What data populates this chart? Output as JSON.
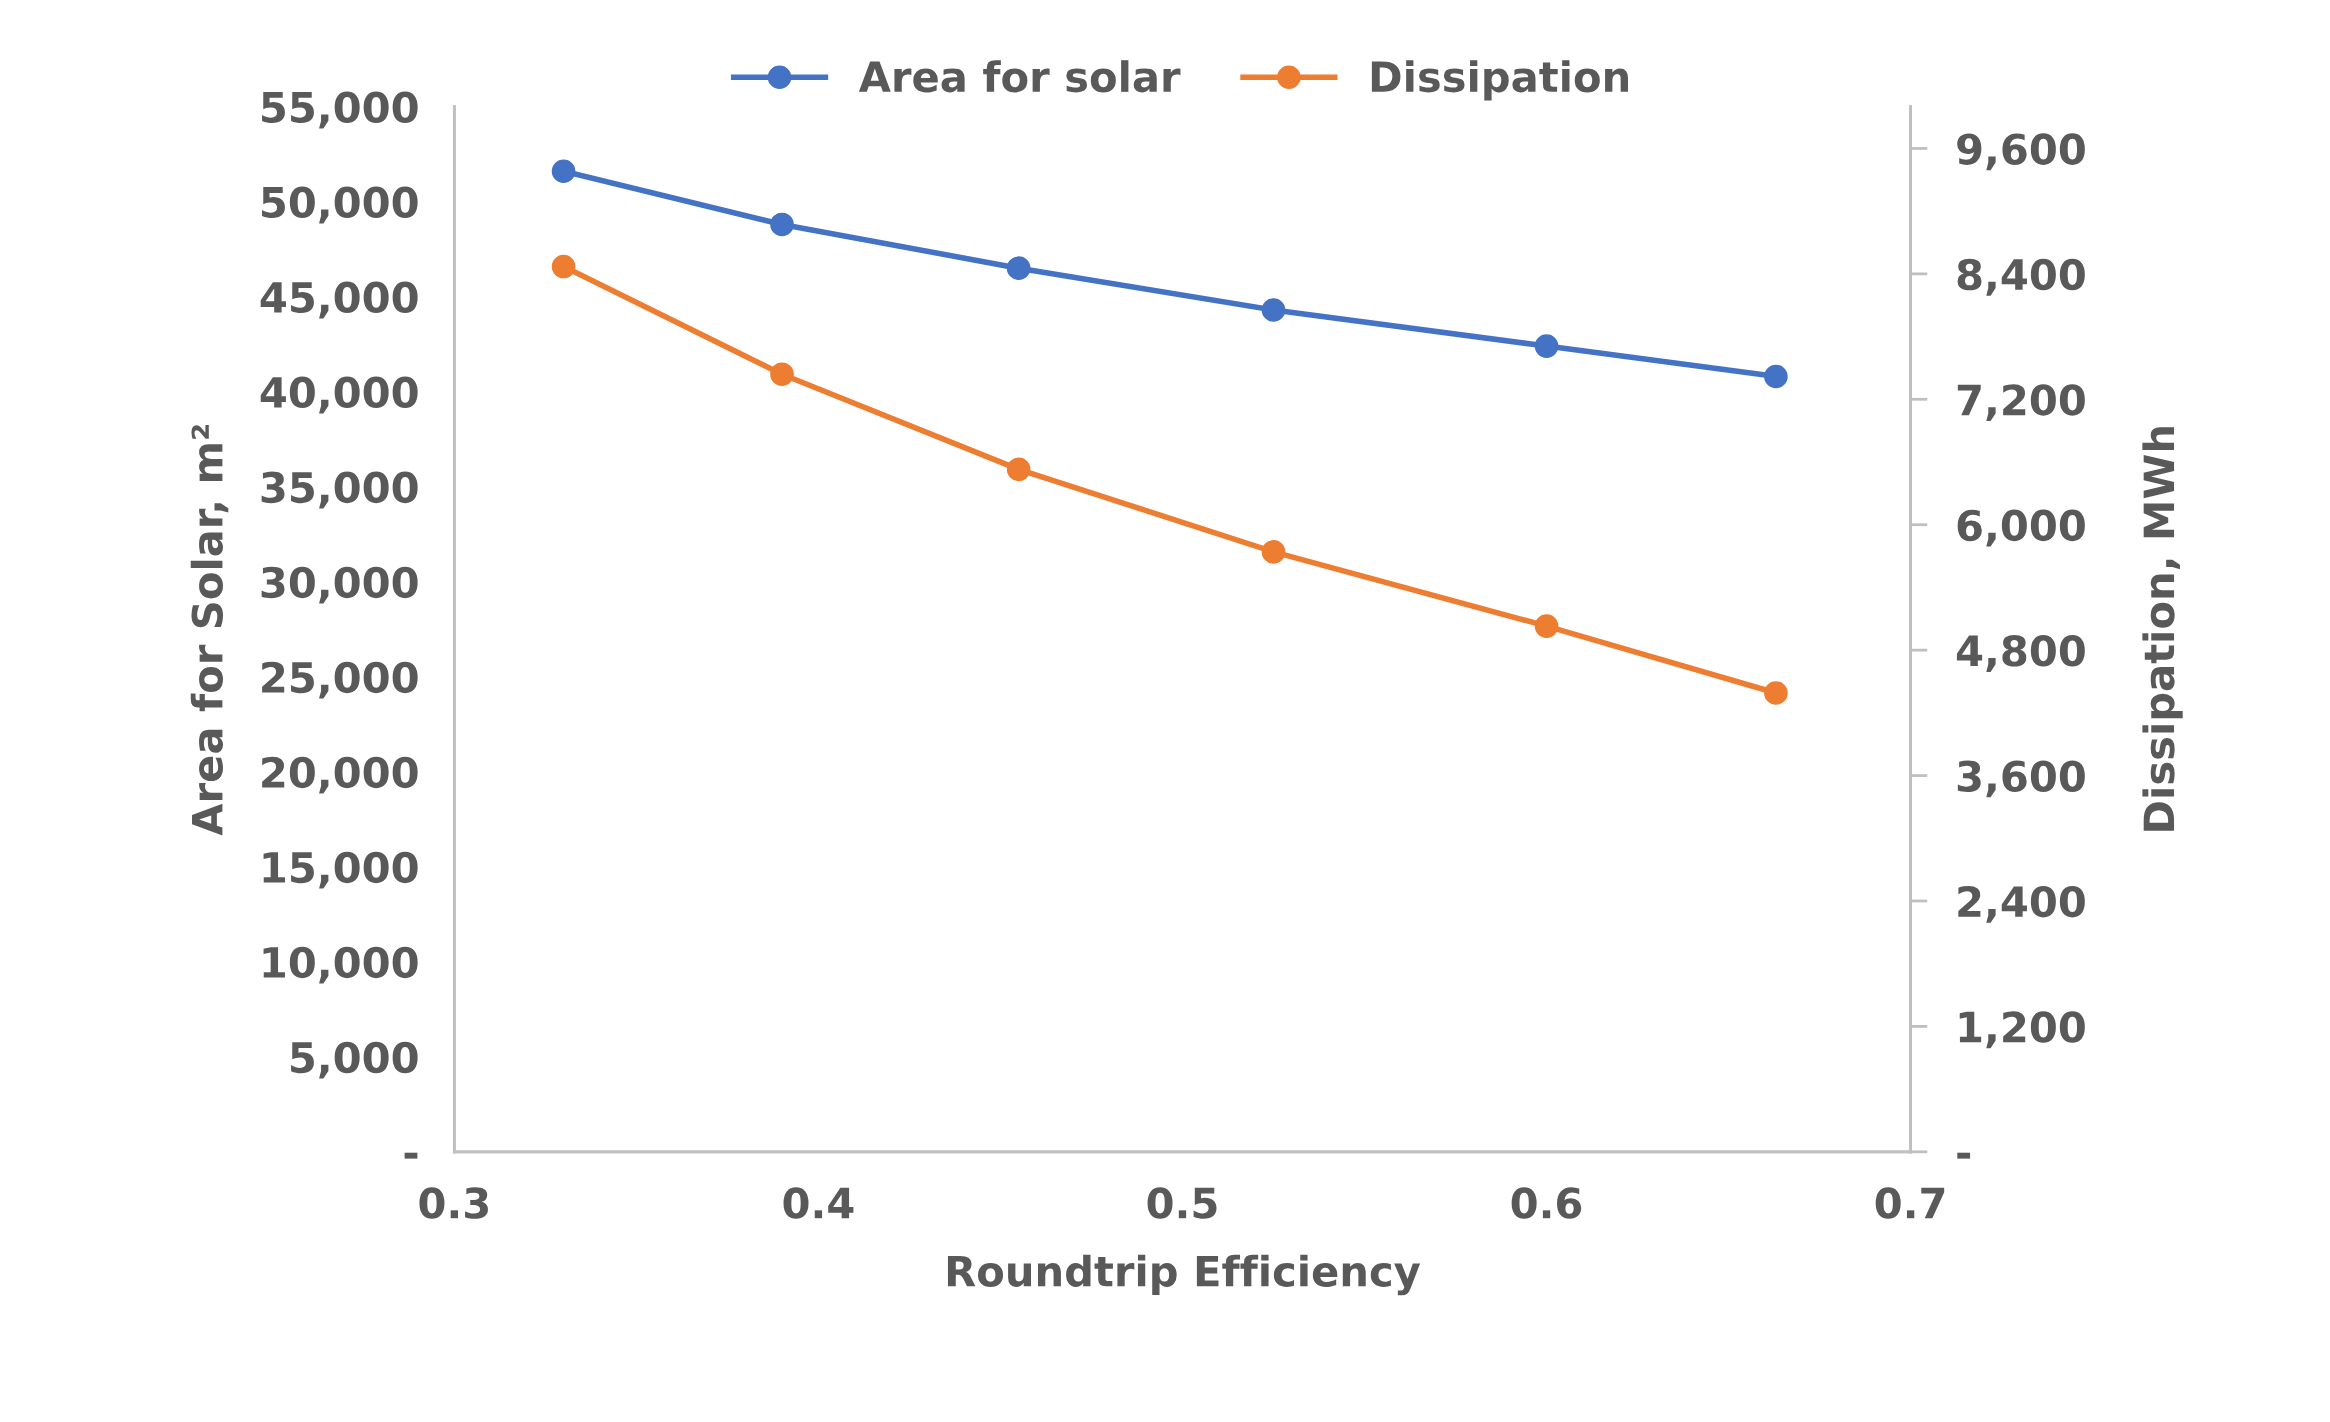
{
  "chart_data": {
    "type": "line",
    "xlabel": "Roundtrip Efficiency",
    "ylabel": "Area for Solar, m²",
    "y2label": "Dissipation, MWh",
    "x": [
      0.33,
      0.39,
      0.455,
      0.525,
      0.6,
      0.663
    ],
    "series": [
      {
        "name": "Area for solar",
        "color": "#4472c4",
        "values": [
          51600,
          48800,
          46500,
          44300,
          42400,
          40800
        ]
      },
      {
        "name": "Dissipation",
        "color": "#ed7d31",
        "axis": "y2",
        "values": [
          8470,
          7440,
          6530,
          5740,
          5030,
          4390
        ]
      }
    ],
    "xlim": [
      0.3,
      0.7
    ],
    "xticks": [
      0.3,
      0.4,
      0.5,
      0.6,
      0.7
    ],
    "ylim": [
      0,
      55000
    ],
    "yticks": [
      {
        "value": 0,
        "label": "-"
      },
      {
        "value": 5000,
        "label": "5,000"
      },
      {
        "value": 10000,
        "label": "10,000"
      },
      {
        "value": 15000,
        "label": "15,000"
      },
      {
        "value": 20000,
        "label": "20,000"
      },
      {
        "value": 25000,
        "label": "25,000"
      },
      {
        "value": 30000,
        "label": "30,000"
      },
      {
        "value": 35000,
        "label": "35,000"
      },
      {
        "value": 40000,
        "label": "40,000"
      },
      {
        "value": 45000,
        "label": "45,000"
      },
      {
        "value": 50000,
        "label": "50,000"
      },
      {
        "value": 55000,
        "label": "55,000"
      }
    ],
    "y2lim": [
      0,
      10000
    ],
    "y2ticks": [
      {
        "value": 0,
        "label": "-"
      },
      {
        "value": 1200,
        "label": "1,200"
      },
      {
        "value": 2400,
        "label": "2,400"
      },
      {
        "value": 3600,
        "label": "3,600"
      },
      {
        "value": 4800,
        "label": "4,800"
      },
      {
        "value": 6000,
        "label": "6,000"
      },
      {
        "value": 7200,
        "label": "7,200"
      },
      {
        "value": 8400,
        "label": "8,400"
      },
      {
        "value": 9600,
        "label": "9,600"
      }
    ],
    "grid": false,
    "legend": "top",
    "marker": "circle",
    "line_style": "solid"
  }
}
